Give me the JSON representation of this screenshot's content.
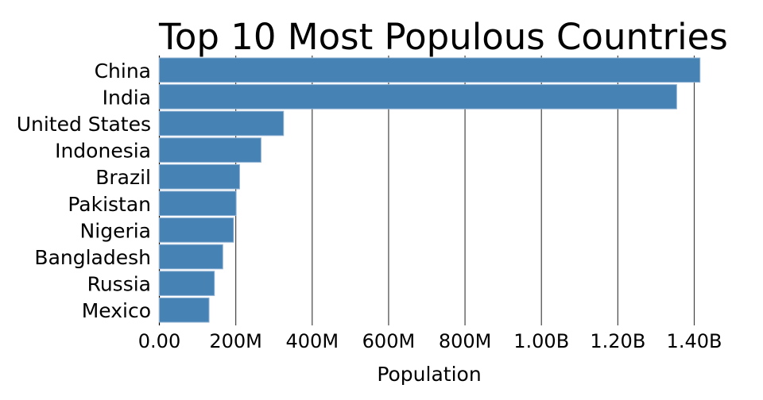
{
  "chart_data": {
    "type": "bar",
    "orientation": "horizontal",
    "title": "Top 10 Most Populous Countries",
    "xlabel": "Population",
    "ylabel": "",
    "categories": [
      "China",
      "India",
      "United States",
      "Indonesia",
      "Brazil",
      "Pakistan",
      "Nigeria",
      "Bangladesh",
      "Russia",
      "Mexico"
    ],
    "values": [
      1415000000,
      1354000000,
      325000000,
      266000000,
      210000000,
      201000000,
      194000000,
      166000000,
      144000000,
      130000000
    ],
    "xlim": [
      0,
      1400000000
    ],
    "xticks": [
      0,
      200000000,
      400000000,
      600000000,
      800000000,
      1000000000,
      1200000000,
      1400000000
    ],
    "xtick_labels": [
      "0.00",
      "200M",
      "400M",
      "600M",
      "800M",
      "1.00B",
      "1.20B",
      "1.40B"
    ],
    "grid": "vertical",
    "bar_color": "#4682b4"
  }
}
